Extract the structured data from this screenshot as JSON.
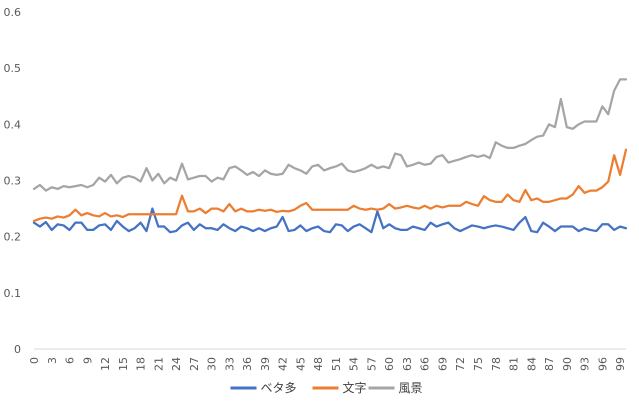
{
  "chart_data": {
    "type": "line",
    "title": "",
    "xlabel": "",
    "ylabel": "",
    "ylim": [
      0,
      0.6
    ],
    "y_ticks": [
      "0",
      "0.1",
      "0.2",
      "0.3",
      "0.4",
      "0.5",
      "0.6"
    ],
    "x_tick_step": 3,
    "grid": false,
    "legend_position": "bottom",
    "x": [
      0,
      1,
      2,
      3,
      4,
      5,
      6,
      7,
      8,
      9,
      10,
      11,
      12,
      13,
      14,
      15,
      16,
      17,
      18,
      19,
      20,
      21,
      22,
      23,
      24,
      25,
      26,
      27,
      28,
      29,
      30,
      31,
      32,
      33,
      34,
      35,
      36,
      37,
      38,
      39,
      40,
      41,
      42,
      43,
      44,
      45,
      46,
      47,
      48,
      49,
      50,
      51,
      52,
      53,
      54,
      55,
      56,
      57,
      58,
      59,
      60,
      61,
      62,
      63,
      64,
      65,
      66,
      67,
      68,
      69,
      70,
      71,
      72,
      73,
      74,
      75,
      76,
      77,
      78,
      79,
      80,
      81,
      82,
      83,
      84,
      85,
      86,
      87,
      88,
      89,
      90,
      91,
      92,
      93,
      94,
      95,
      96,
      97,
      98,
      99,
      100
    ],
    "series": [
      {
        "name": "ベタ多",
        "color": "#4472C4",
        "values": [
          0.225,
          0.218,
          0.226,
          0.212,
          0.222,
          0.22,
          0.212,
          0.225,
          0.225,
          0.212,
          0.212,
          0.22,
          0.222,
          0.212,
          0.228,
          0.218,
          0.21,
          0.215,
          0.225,
          0.21,
          0.25,
          0.218,
          0.218,
          0.208,
          0.21,
          0.22,
          0.225,
          0.212,
          0.222,
          0.215,
          0.215,
          0.212,
          0.222,
          0.215,
          0.21,
          0.218,
          0.215,
          0.21,
          0.215,
          0.21,
          0.215,
          0.218,
          0.235,
          0.21,
          0.212,
          0.22,
          0.21,
          0.215,
          0.218,
          0.21,
          0.208,
          0.222,
          0.22,
          0.21,
          0.218,
          0.222,
          0.215,
          0.208,
          0.245,
          0.215,
          0.222,
          0.215,
          0.212,
          0.212,
          0.218,
          0.215,
          0.212,
          0.225,
          0.218,
          0.222,
          0.225,
          0.215,
          0.21,
          0.215,
          0.22,
          0.218,
          0.215,
          0.218,
          0.22,
          0.218,
          0.215,
          0.212,
          0.225,
          0.235,
          0.21,
          0.208,
          0.225,
          0.218,
          0.21,
          0.218,
          0.218,
          0.218,
          0.21,
          0.215,
          0.212,
          0.21,
          0.222,
          0.222,
          0.212,
          0.218,
          0.215
        ]
      },
      {
        "name": "文字",
        "color": "#ED7D31",
        "values": [
          0.228,
          0.232,
          0.234,
          0.232,
          0.236,
          0.234,
          0.238,
          0.248,
          0.238,
          0.242,
          0.238,
          0.236,
          0.242,
          0.236,
          0.238,
          0.235,
          0.24,
          0.24,
          0.24,
          0.24,
          0.24,
          0.24,
          0.24,
          0.24,
          0.24,
          0.273,
          0.245,
          0.245,
          0.25,
          0.242,
          0.25,
          0.25,
          0.245,
          0.258,
          0.245,
          0.25,
          0.245,
          0.245,
          0.248,
          0.246,
          0.248,
          0.244,
          0.246,
          0.245,
          0.248,
          0.255,
          0.26,
          0.248,
          0.248,
          0.248,
          0.248,
          0.248,
          0.248,
          0.248,
          0.255,
          0.25,
          0.248,
          0.25,
          0.248,
          0.25,
          0.258,
          0.25,
          0.252,
          0.255,
          0.252,
          0.25,
          0.255,
          0.25,
          0.255,
          0.252,
          0.255,
          0.255,
          0.255,
          0.262,
          0.258,
          0.255,
          0.272,
          0.265,
          0.262,
          0.262,
          0.275,
          0.265,
          0.262,
          0.283,
          0.265,
          0.268,
          0.262,
          0.262,
          0.265,
          0.268,
          0.268,
          0.275,
          0.29,
          0.278,
          0.282,
          0.282,
          0.288,
          0.298,
          0.345,
          0.31,
          0.355
        ]
      },
      {
        "name": "風景",
        "color": "#A5A5A5",
        "values": [
          0.285,
          0.292,
          0.282,
          0.288,
          0.285,
          0.29,
          0.288,
          0.29,
          0.292,
          0.288,
          0.292,
          0.305,
          0.298,
          0.31,
          0.295,
          0.305,
          0.308,
          0.305,
          0.298,
          0.322,
          0.3,
          0.312,
          0.295,
          0.305,
          0.3,
          0.33,
          0.302,
          0.305,
          0.308,
          0.308,
          0.298,
          0.305,
          0.302,
          0.322,
          0.325,
          0.318,
          0.31,
          0.315,
          0.308,
          0.318,
          0.312,
          0.31,
          0.312,
          0.328,
          0.322,
          0.318,
          0.312,
          0.325,
          0.328,
          0.318,
          0.322,
          0.325,
          0.33,
          0.318,
          0.315,
          0.318,
          0.322,
          0.328,
          0.322,
          0.325,
          0.322,
          0.348,
          0.345,
          0.325,
          0.328,
          0.332,
          0.328,
          0.33,
          0.342,
          0.345,
          0.332,
          0.335,
          0.338,
          0.342,
          0.345,
          0.342,
          0.345,
          0.34,
          0.368,
          0.362,
          0.358,
          0.358,
          0.362,
          0.365,
          0.372,
          0.378,
          0.38,
          0.4,
          0.395,
          0.445,
          0.395,
          0.392,
          0.4,
          0.405,
          0.405,
          0.405,
          0.432,
          0.418,
          0.46,
          0.48,
          0.48
        ]
      }
    ]
  }
}
